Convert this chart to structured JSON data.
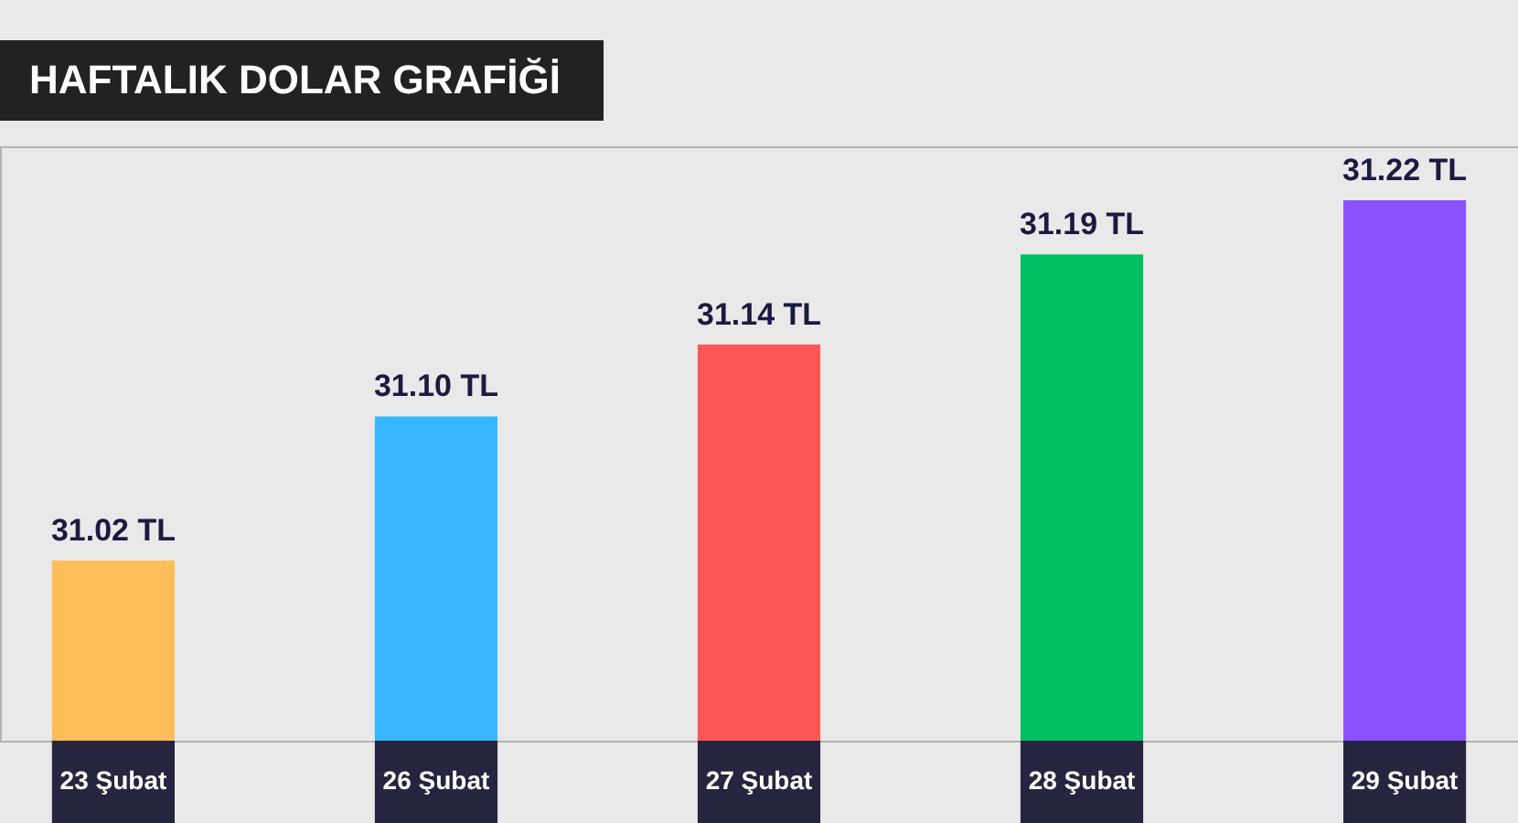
{
  "chart_data": {
    "type": "bar",
    "title": "HAFTALIK DOLAR GRAFİĞİ",
    "categories": [
      "23 Şubat",
      "26 Şubat",
      "27 Şubat",
      "28 Şubat",
      "29 Şubat"
    ],
    "values": [
      31.02,
      31.1,
      31.14,
      31.19,
      31.22
    ],
    "value_labels": [
      "31.02 TL",
      "31.10 TL",
      "31.14 TL",
      "31.19 TL",
      "31.22 TL"
    ],
    "colors": [
      "#ffbd59",
      "#38b6ff",
      "#ff5757",
      "#00bf63",
      "#8c52ff"
    ],
    "ylim": [
      30.92,
      31.25
    ],
    "tick_labels": "x"
  }
}
